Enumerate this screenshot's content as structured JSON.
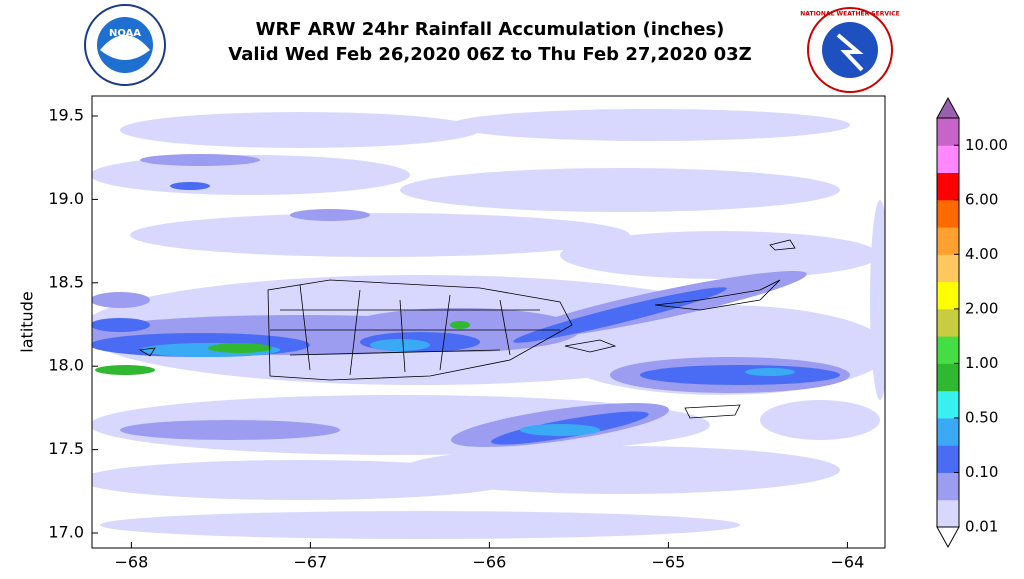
{
  "header": {
    "title": "WRF ARW 24hr Rainfall Accumulation (inches)",
    "subtitle": "Valid Wed Feb 26,2020 06Z to Thu Feb 27,2020 03Z",
    "left_logo": "NOAA",
    "right_logo": "NATIONAL WEATHER SERVICE"
  },
  "map": {
    "y_label": "latitude",
    "xlim": [
      -68.22,
      -63.79
    ],
    "ylim": [
      16.91,
      19.62
    ],
    "xticks": [
      {
        "value": -68,
        "label": "−68"
      },
      {
        "value": -67,
        "label": "−67"
      },
      {
        "value": -66,
        "label": "−66"
      },
      {
        "value": -65,
        "label": "−65"
      },
      {
        "value": -64,
        "label": "−64"
      }
    ],
    "yticks": [
      {
        "value": 17,
        "label": "17.0"
      },
      17.5,
      {
        "value": 18,
        "label": "18.0"
      },
      18.5,
      {
        "value": 19,
        "label": "19.0"
      },
      19.5
    ]
  },
  "colorbar": {
    "ticks": [
      0.01,
      {
        "value": 0.1,
        "label": "0.10"
      },
      {
        "value": 0.5,
        "label": "0.50"
      },
      {
        "value": 1,
        "label": "1.00"
      },
      {
        "value": 2,
        "label": "2.00"
      },
      {
        "value": 4,
        "label": "4.00"
      },
      {
        "value": 6,
        "label": "6.00"
      },
      {
        "value": 10,
        "label": "10.00"
      }
    ],
    "colors": [
      "#d8d8ff",
      "#9c9cf0",
      "#4a6cf5",
      "#3aaaf5",
      "#38f0f0",
      "#30b830",
      "#44dd44",
      "#c8cc40",
      "#ffff00",
      "#ffc860",
      "#ffa030",
      "#ff6a00",
      "#ff0000",
      "#ff88ff",
      "#c864c8"
    ],
    "over_color": "#9a60b0",
    "under_color": "#ffffff"
  }
}
